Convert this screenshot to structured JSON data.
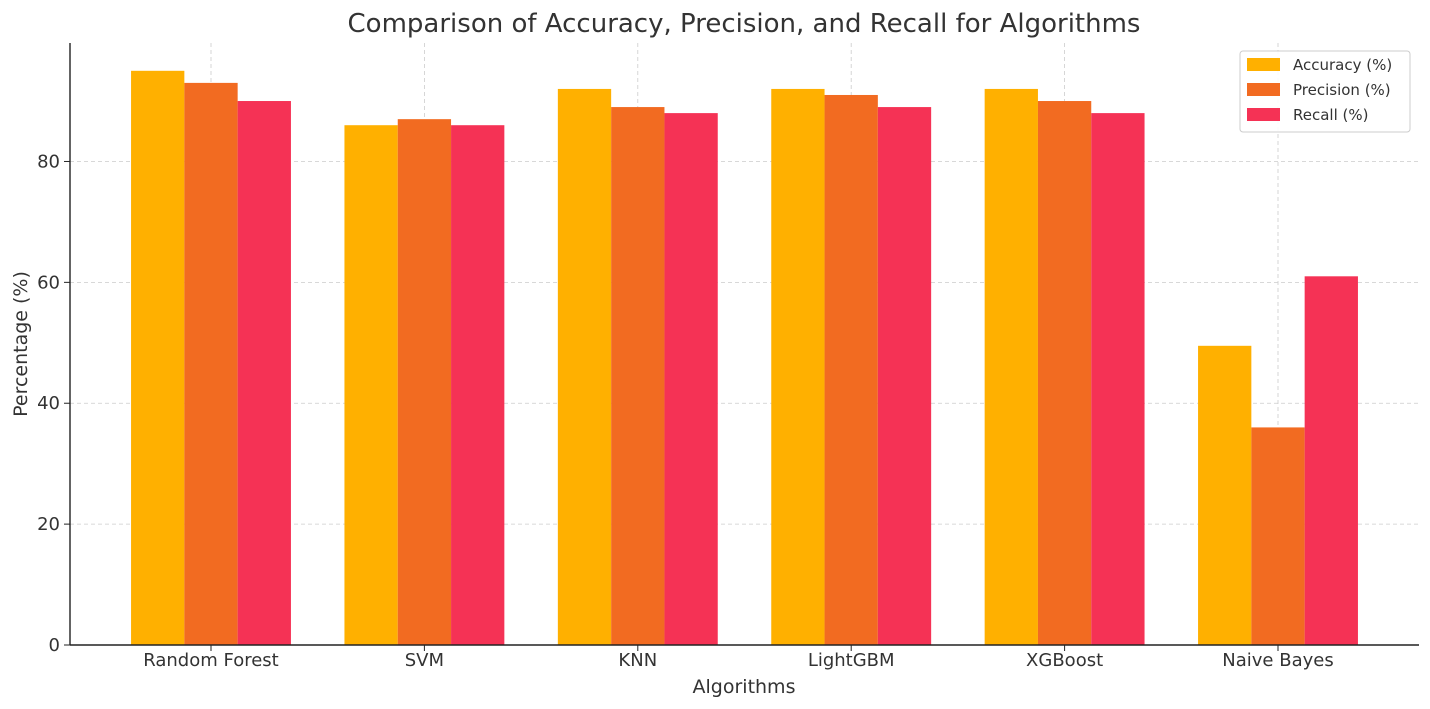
{
  "chart_data": {
    "type": "bar",
    "title": "Comparison of Accuracy, Precision, and Recall for Algorithms",
    "xlabel": "Algorithms",
    "ylabel": "Percentage (%)",
    "categories": [
      "Random Forest",
      "SVM",
      "KNN",
      "LightGBM",
      "XGBoost",
      "Naive Bayes"
    ],
    "series": [
      {
        "name": "Accuracy (%)",
        "color": "#FFB000",
        "values": [
          95,
          86,
          92,
          92,
          92,
          49.5
        ]
      },
      {
        "name": "Precision (%)",
        "color": "#F26B21",
        "values": [
          93,
          87,
          89,
          91,
          90,
          36
        ]
      },
      {
        "name": "Recall (%)",
        "color": "#F53255",
        "values": [
          90,
          86,
          88,
          89,
          88,
          61
        ]
      }
    ],
    "ylim": [
      0,
      99.6
    ],
    "yticks": [
      0,
      20,
      40,
      60,
      80
    ],
    "grid": true,
    "legend_position": "top-right"
  }
}
